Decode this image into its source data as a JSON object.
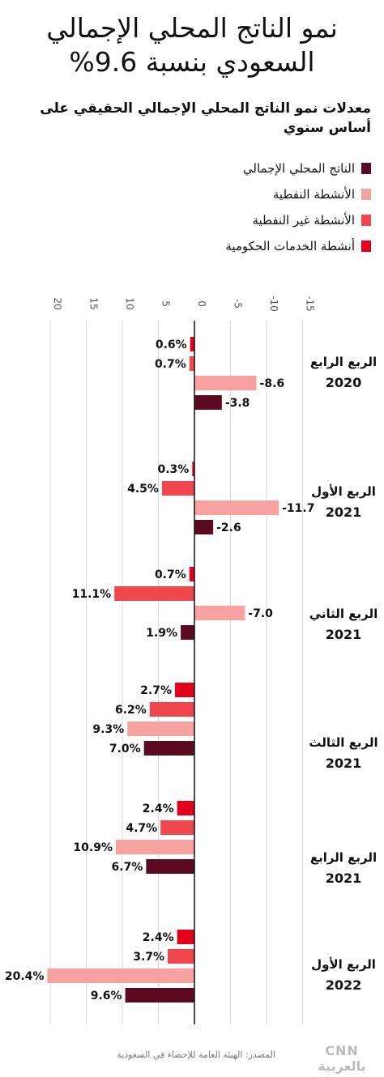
{
  "title_line1": "نمو الناتج المحلي الإجمالي",
  "title_line2": "السعودي بنسبة 9.6%",
  "subtitle": "معدلات نمو الناتج المحلي الإجمالي الحقيقي على أساس سنوي",
  "source": "المصدر: الهيئة العامة للإحصاء في السعودية",
  "brand": "CNN بالعربية",
  "chart_data": {
    "type": "bar",
    "orientation": "horizontal",
    "reversed_x_axis": true,
    "xlim": [
      20,
      -15
    ],
    "ticks": [
      20,
      15,
      10,
      5,
      0,
      -5,
      -10,
      -15
    ],
    "tick_labels": [
      "20",
      "15",
      "10",
      "5",
      "0",
      "-5",
      "-10",
      "-15"
    ],
    "grid": true,
    "legend_position": "top-right",
    "categories": [
      [
        "الربع الرابع",
        "2020"
      ],
      [
        "الربع الأول",
        "2021"
      ],
      [
        "الربع الثاني",
        "2021"
      ],
      [
        "الربع الثالث",
        "2021"
      ],
      [
        "الربع الرابع",
        "2021"
      ],
      [
        "الربع الأول",
        "2022"
      ]
    ],
    "series": [
      {
        "name": "أنشطة الخدمات الحكومية",
        "color": "#e3001b",
        "values": [
          0.6,
          0.3,
          0.7,
          2.7,
          2.4,
          2.4
        ],
        "labels": [
          "0.6%",
          "0.3%",
          "0.7%",
          "2.7%",
          "2.4%",
          "2.4%"
        ]
      },
      {
        "name": "الأنشطة غير النفطية",
        "color": "#f0464d",
        "values": [
          0.7,
          4.5,
          11.1,
          6.2,
          4.7,
          3.7
        ],
        "labels": [
          "0.7%",
          "4.5%",
          "11.1%",
          "6.2%",
          "4.7%",
          "3.7%"
        ]
      },
      {
        "name": "الأنشطة النفطية",
        "color": "#f7a1a1",
        "values": [
          -8.6,
          -11.7,
          -7.0,
          9.3,
          10.9,
          20.4
        ],
        "labels": [
          "-8.6",
          "-11.7",
          "-7.0",
          "9.3%",
          "10.9%",
          "20.4%"
        ]
      },
      {
        "name": "الناتج المحلي الإجمالي",
        "color": "#5c0a22",
        "values": [
          -3.8,
          -2.6,
          1.9,
          7.0,
          6.7,
          9.6
        ],
        "labels": [
          "-3.8",
          "-2.6",
          "1.9%",
          "7.0%",
          "6.7%",
          "9.6%"
        ]
      }
    ]
  }
}
